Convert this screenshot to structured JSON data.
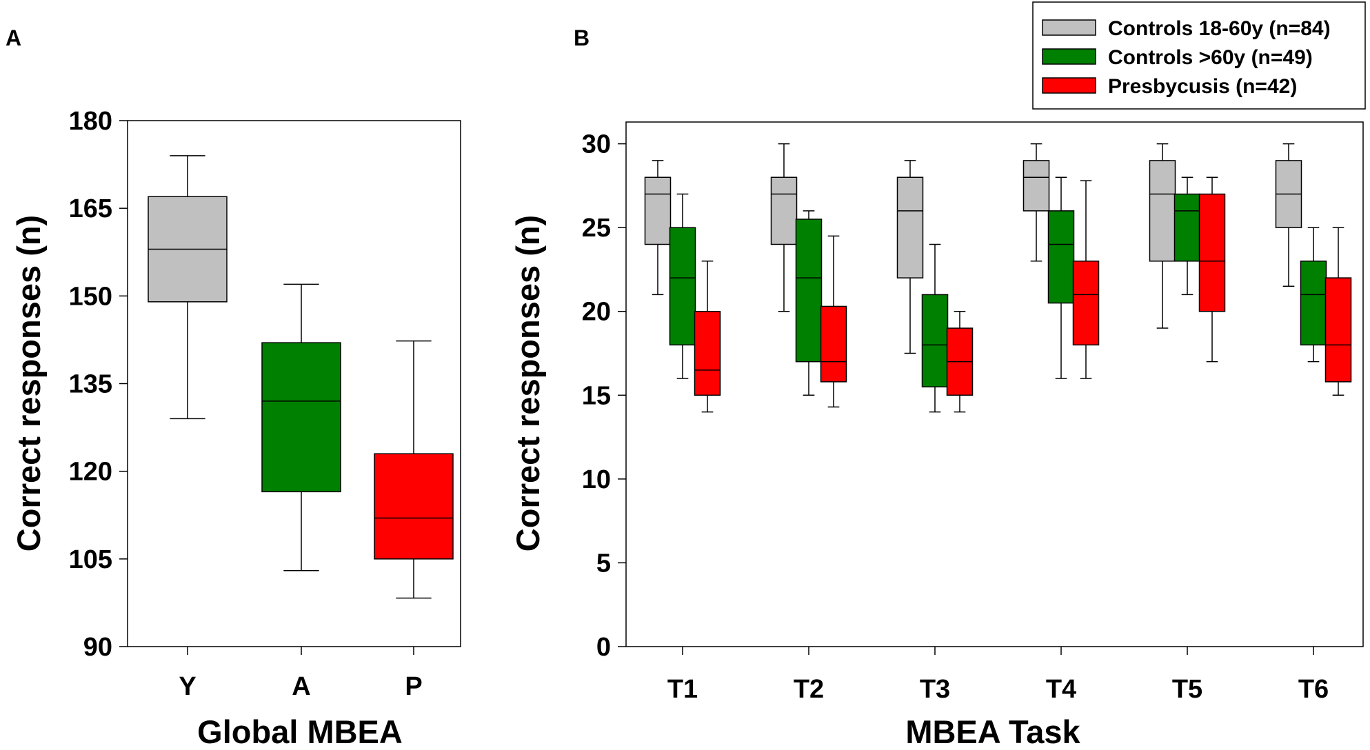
{
  "colors": {
    "Y": "#c0c0c0",
    "A": "#008000",
    "P": "#ff0000",
    "axis": "#000000"
  },
  "chart_data": [
    {
      "panel": "A",
      "type": "box",
      "xlabel": "Global MBEA",
      "ylabel": "Correct responses (n)",
      "ylim": [
        90,
        180
      ],
      "yticks": [
        90,
        105,
        120,
        135,
        150,
        165,
        180
      ],
      "categories": [
        "Y",
        "A",
        "P"
      ],
      "boxes": [
        {
          "category": "Y",
          "color_key": "Y",
          "min": 129,
          "q1": 149,
          "median": 158,
          "q3": 167,
          "max": 174
        },
        {
          "category": "A",
          "color_key": "A",
          "min": 103,
          "q1": 116.5,
          "median": 132,
          "q3": 142,
          "max": 152
        },
        {
          "category": "P",
          "color_key": "P",
          "min": 98.3,
          "q1": 105,
          "median": 112,
          "q3": 123,
          "max": 142.3
        }
      ]
    },
    {
      "panel": "B",
      "type": "box",
      "xlabel": "MBEA Task",
      "ylabel": "Correct responses (n)",
      "ylim": [
        0,
        31.3
      ],
      "yticks": [
        0,
        5,
        10,
        15,
        20,
        25,
        30
      ],
      "categories": [
        "T1",
        "T2",
        "T3",
        "T4",
        "T5",
        "T6"
      ],
      "legend": [
        {
          "label": "Controls 18-60y (n=84)",
          "color_key": "Y"
        },
        {
          "label": "Controls >60y (n=49)",
          "color_key": "A"
        },
        {
          "label": "Presbycusis (n=42)",
          "color_key": "P"
        }
      ],
      "series": [
        {
          "name": "Controls 18-60y (n=84)",
          "color_key": "Y",
          "boxes": [
            {
              "min": 21,
              "q1": 24,
              "median": 27,
              "q3": 28,
              "max": 29
            },
            {
              "min": 20,
              "q1": 24,
              "median": 27,
              "q3": 28,
              "max": 30
            },
            {
              "min": 17.5,
              "q1": 22,
              "median": 26,
              "q3": 28,
              "max": 29
            },
            {
              "min": 23,
              "q1": 26,
              "median": 28,
              "q3": 29,
              "max": 30
            },
            {
              "min": 19,
              "q1": 23,
              "median": 27,
              "q3": 29,
              "max": 30
            },
            {
              "min": 21.5,
              "q1": 25,
              "median": 27,
              "q3": 29,
              "max": 30
            }
          ]
        },
        {
          "name": "Controls >60y (n=49)",
          "color_key": "A",
          "boxes": [
            {
              "min": 16,
              "q1": 18,
              "median": 22,
              "q3": 25,
              "max": 27
            },
            {
              "min": 15,
              "q1": 17,
              "median": 22,
              "q3": 25.5,
              "max": 26
            },
            {
              "min": 14,
              "q1": 15.5,
              "median": 18,
              "q3": 21,
              "max": 24
            },
            {
              "min": 16,
              "q1": 20.5,
              "median": 24,
              "q3": 26,
              "max": 28
            },
            {
              "min": 21,
              "q1": 23,
              "median": 26,
              "q3": 27,
              "max": 28
            },
            {
              "min": 17,
              "q1": 18,
              "median": 21,
              "q3": 23,
              "max": 25
            }
          ]
        },
        {
          "name": "Presbycusis (n=42)",
          "color_key": "P",
          "boxes": [
            {
              "min": 14,
              "q1": 15,
              "median": 16.5,
              "q3": 20,
              "max": 23
            },
            {
              "min": 14.3,
              "q1": 15.8,
              "median": 17,
              "q3": 20.3,
              "max": 24.5
            },
            {
              "min": 14,
              "q1": 15,
              "median": 17,
              "q3": 19,
              "max": 20
            },
            {
              "min": 16,
              "q1": 18,
              "median": 21,
              "q3": 23,
              "max": 27.8
            },
            {
              "min": 17,
              "q1": 20,
              "median": 23,
              "q3": 27,
              "max": 28
            },
            {
              "min": 15,
              "q1": 15.8,
              "median": 18,
              "q3": 22,
              "max": 25
            }
          ]
        }
      ]
    }
  ]
}
